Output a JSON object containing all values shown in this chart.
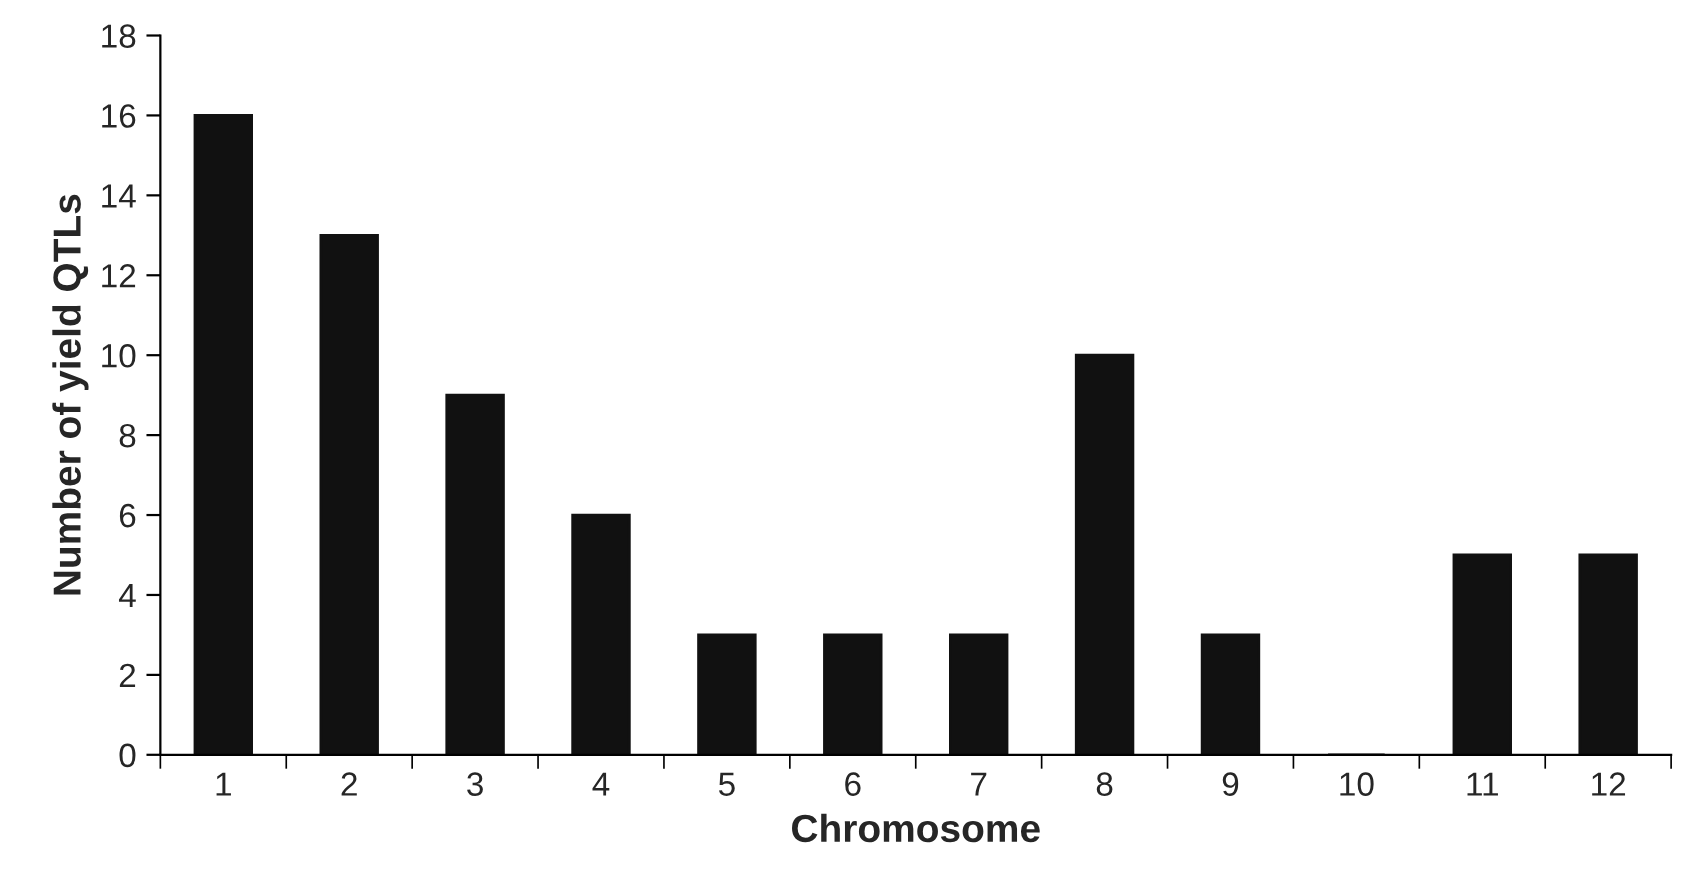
{
  "chart_data": {
    "type": "bar",
    "xlabel": "Chromosome",
    "ylabel": "Number of yield QTLs",
    "categories": [
      "1",
      "2",
      "3",
      "4",
      "5",
      "6",
      "7",
      "8",
      "9",
      "10",
      "11",
      "12"
    ],
    "values": [
      16,
      13,
      9,
      6,
      3,
      3,
      3,
      10,
      3,
      0,
      5,
      5
    ],
    "color": "#111111",
    "ylim": [
      0,
      18
    ],
    "yticks": [
      0,
      2,
      4,
      6,
      8,
      10,
      12,
      14,
      16,
      18
    ],
    "grid": false,
    "legend": false
  }
}
